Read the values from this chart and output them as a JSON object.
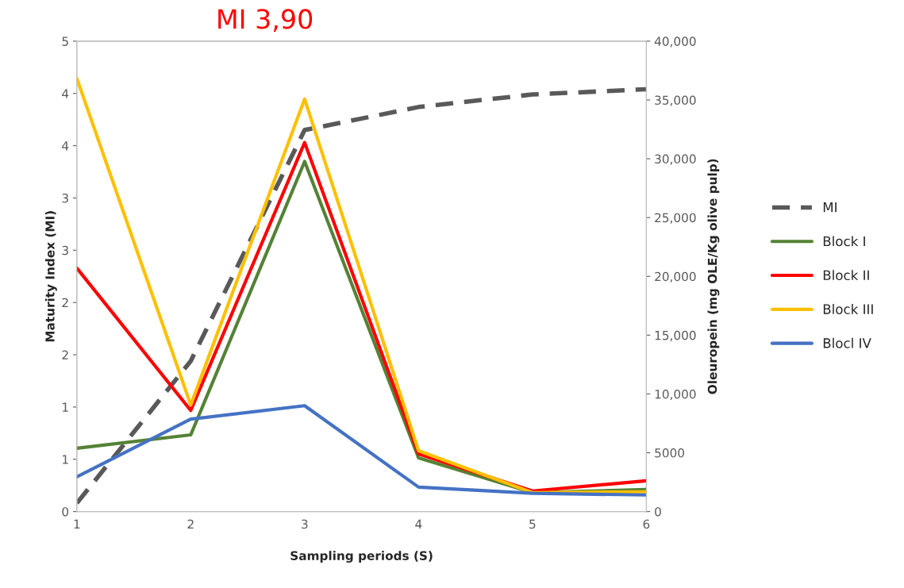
{
  "chart_data": {
    "type": "line",
    "xlabel": "Sampling periods (S)",
    "ylabel": "Maturity Index (MI)",
    "y2label": "Oleuropein (mg OLE/Kg olive pulp)",
    "annotations": [
      "MI 3,90"
    ],
    "x": [
      1,
      2,
      3,
      4,
      5,
      6
    ],
    "xlim": [
      1,
      6
    ],
    "xticks": [
      1,
      2,
      3,
      4,
      5,
      6
    ],
    "ylim": [
      0,
      4.5
    ],
    "yticks": [
      0,
      {
        "value": 0.5,
        "label": "1"
      },
      1,
      {
        "value": 1.5,
        "label": "2"
      },
      2,
      {
        "value": 2.5,
        "label": "3"
      },
      3,
      {
        "value": 3.5,
        "label": "4"
      },
      4,
      {
        "value": 4.5,
        "label": "5"
      }
    ],
    "y2lim": [
      0,
      40000
    ],
    "y2ticks": [
      0,
      5000,
      {
        "value": 10000,
        "label": "10,000"
      },
      {
        "value": 15000,
        "label": "15,000"
      },
      {
        "value": 20000,
        "label": "20,000"
      },
      {
        "value": 25000,
        "label": "25,000"
      },
      {
        "value": 30000,
        "label": "30,000"
      },
      {
        "value": 35000,
        "label": "35,000"
      },
      {
        "value": 40000,
        "label": "40,000"
      }
    ],
    "grid": false,
    "legend": "right",
    "marker": "none",
    "series": [
      {
        "name": "MI",
        "color": "#595959",
        "line_style": "dashed",
        "values": [
          0.08,
          1.44,
          3.65,
          3.87,
          3.99,
          4.04
        ]
      },
      {
        "name": "Block I",
        "color": "#548235",
        "axis": "y2",
        "values": [
          5380,
          6520,
          29770,
          4570,
          1610,
          1880
        ]
      },
      {
        "name": "Block II",
        "color": "#ff0000",
        "axis": "y2",
        "values": [
          20700,
          8600,
          31380,
          4900,
          1750,
          2620
        ]
      },
      {
        "name": "Block III",
        "color": "#ffc000",
        "axis": "y2",
        "values": [
          36830,
          9070,
          35080,
          5170,
          1610,
          1680
        ]
      },
      {
        "name": "Blocl IV",
        "color": "#4472c4",
        "axis": "y2",
        "values": [
          2960,
          7860,
          9000,
          2080,
          1550,
          1410
        ]
      }
    ]
  }
}
